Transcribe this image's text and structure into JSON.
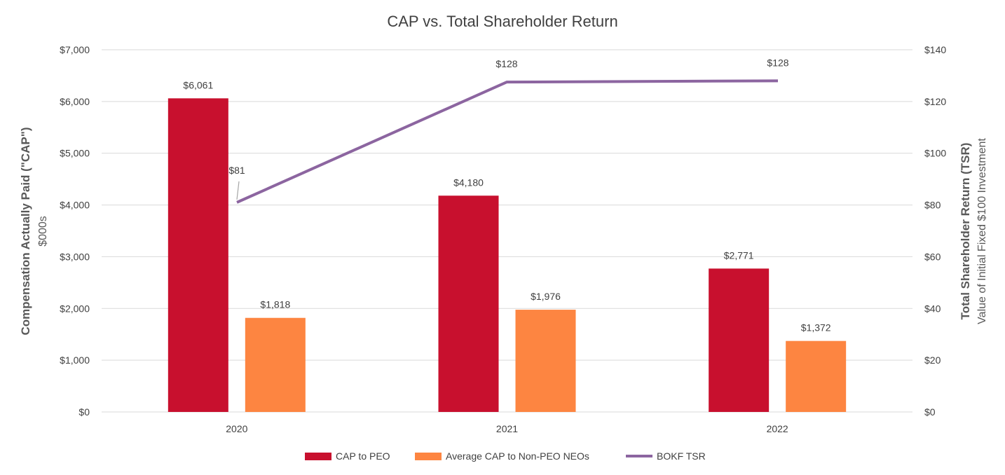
{
  "chart_data": {
    "type": "bar",
    "title": "CAP vs. Total Shareholder Return",
    "categories": [
      "2020",
      "2021",
      "2022"
    ],
    "series": [
      {
        "name": "CAP to PEO",
        "kind": "bar",
        "axis": "left",
        "color": "#c8102e",
        "values": [
          6061,
          4180,
          2771
        ],
        "labels": [
          "$6,061",
          "$4,180",
          "$2,771"
        ]
      },
      {
        "name": "Average CAP to Non-PEO NEOs",
        "kind": "bar",
        "axis": "left",
        "color": "#fd8541",
        "values": [
          1818,
          1976,
          1372
        ],
        "labels": [
          "$1,818",
          "$1,976",
          "$1,372"
        ]
      },
      {
        "name": "BOKF TSR",
        "kind": "line",
        "axis": "right",
        "color": "#8c65a0",
        "values": [
          81,
          127.5,
          128
        ],
        "labels": [
          "$81",
          "$128",
          "$128"
        ]
      }
    ],
    "y_left": {
      "label_line1": "Compensation Actually Paid (\"CAP\")",
      "label_line2": "$000s",
      "ylim": [
        0,
        7000
      ],
      "ticks": [
        0,
        1000,
        2000,
        3000,
        4000,
        5000,
        6000,
        7000
      ],
      "tick_labels": [
        "$0",
        "$1,000",
        "$2,000",
        "$3,000",
        "$4,000",
        "$5,000",
        "$6,000",
        "$7,000"
      ]
    },
    "y_right": {
      "label_line1": "Total Shareholder Return (TSR)",
      "label_line2": "Value of Initial Fixed $100 Investment",
      "ylim": [
        0,
        140
      ],
      "ticks": [
        0,
        20,
        40,
        60,
        80,
        100,
        120,
        140
      ],
      "tick_labels": [
        "$0",
        "$20",
        "$40",
        "$60",
        "$80",
        "$100",
        "$120",
        "$140"
      ]
    },
    "grid": true,
    "legend_position": "bottom"
  }
}
